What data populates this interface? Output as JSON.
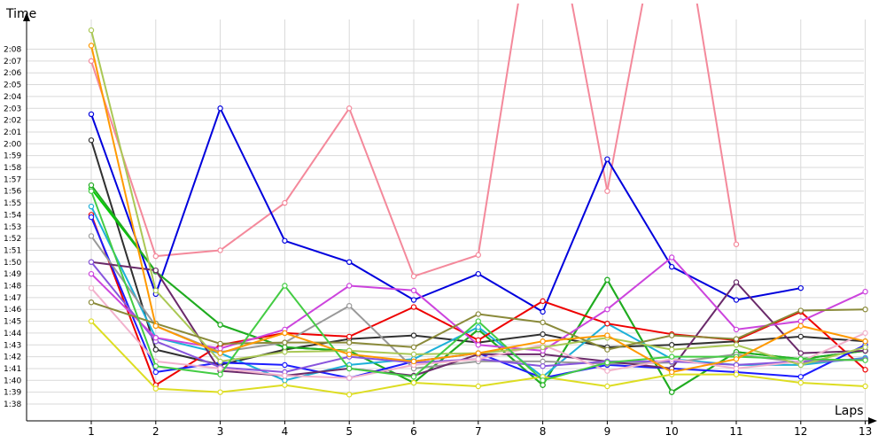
{
  "chart_data": {
    "type": "line",
    "xlabel": "Laps",
    "ylabel": "Time",
    "x": [
      1,
      2,
      3,
      4,
      5,
      6,
      7,
      8,
      9,
      10,
      11,
      12,
      13
    ],
    "y_ticks": [
      "1:38",
      "1:39",
      "1:40",
      "1:41",
      "1:42",
      "1:43",
      "1:44",
      "1:45",
      "1:46",
      "1:47",
      "1:48",
      "1:49",
      "1:50",
      "1:51",
      "1:52",
      "1:53",
      "1:54",
      "1:55",
      "1:56",
      "1:57",
      "1:58",
      "1:59",
      "2:00",
      "2:01",
      "2:02",
      "2:03",
      "2:04",
      "2:05",
      "2:06",
      "2:07",
      "2:08"
    ],
    "ylim_seconds": [
      97,
      131
    ],
    "grid": true,
    "series": [
      {
        "color": "#f4899b",
        "values": [
          127.0,
          110.5,
          111.0,
          115.0,
          123.0,
          108.8,
          110.6,
          145,
          116,
          145,
          111.5,
          null,
          null
        ]
      },
      {
        "color": "#0000dd",
        "values": [
          122.5,
          107.3,
          123.0,
          111.8,
          110.0,
          106.8,
          109.0,
          105.8,
          118.7,
          109.6,
          106.8,
          107.8,
          null
        ]
      },
      {
        "color": "#303030",
        "values": [
          120.3,
          102.6,
          101.3,
          102.6,
          103.5,
          103.8,
          103.2,
          103.9,
          102.8,
          103.0,
          103.3,
          103.7,
          103.3
        ]
      },
      {
        "color": "#00cc00",
        "values": [
          116.2,
          109.2,
          104.7,
          102.8,
          102.5,
          99.8,
          104.3,
          99.6,
          108.5,
          99.0,
          102.4,
          101.8,
          102.5
        ]
      },
      {
        "color": "#22aa22",
        "values": [
          116.5,
          109.2,
          104.7,
          102.8,
          102.5,
          99.8,
          104.3,
          99.6,
          108.5,
          99.0,
          102.4,
          101.8,
          102.5
        ]
      },
      {
        "color": "#1db0d8",
        "values": [
          114.7,
          103.6,
          102.3,
          100.0,
          101.3,
          101.8,
          104.5,
          100.3,
          104.8,
          101.8,
          101.3,
          101.3,
          101.9
        ]
      },
      {
        "color": "#ee0000",
        "values": [
          114.0,
          99.6,
          103.0,
          104.0,
          103.7,
          106.2,
          103.4,
          106.7,
          104.8,
          103.9,
          103.4,
          105.8,
          100.9
        ]
      },
      {
        "color": "#1c1cff",
        "values": [
          113.8,
          100.7,
          101.5,
          101.3,
          100.2,
          101.6,
          102.3,
          100.2,
          101.3,
          101.0,
          100.7,
          100.3,
          103.0
        ]
      },
      {
        "color": "#999999",
        "values": [
          112.2,
          104.6,
          102.4,
          103.2,
          106.3,
          101.0,
          101.6,
          101.6,
          101.4,
          101.5,
          102.2,
          101.5,
          101.8
        ]
      },
      {
        "color": "#6a2a6a",
        "values": [
          110.0,
          109.3,
          100.8,
          100.4,
          101.0,
          100.4,
          102.2,
          102.2,
          101.6,
          101.0,
          108.3,
          102.3,
          102.5
        ]
      },
      {
        "color": "#8855dd",
        "values": [
          110.0,
          103.3,
          101.1,
          100.7,
          102.0,
          101.5,
          101.8,
          101.2,
          101.6,
          101.6,
          101.3,
          101.6,
          101.8
        ]
      },
      {
        "color": "#cc44dd",
        "values": [
          109.0,
          103.6,
          102.7,
          104.3,
          108.0,
          107.6,
          103.0,
          102.5,
          106.0,
          110.4,
          104.3,
          105.0,
          107.5
        ]
      },
      {
        "color": "#f2b2cc",
        "values": [
          107.8,
          101.6,
          101.0,
          100.4,
          100.2,
          101.3,
          101.8,
          103.0,
          100.8,
          101.8,
          101.0,
          101.6,
          104.0
        ]
      },
      {
        "color": "#aac855",
        "values": [
          129.6,
          107.6,
          101.6,
          102.4,
          102.5,
          102.2,
          102.3,
          102.8,
          103.6,
          102.6,
          103.0,
          101.3,
          102.8
        ]
      },
      {
        "color": "#8a8a3a",
        "values": [
          106.6,
          104.8,
          103.1,
          103.2,
          103.2,
          102.8,
          105.6,
          104.9,
          102.6,
          103.8,
          103.5,
          105.9,
          106.0
        ]
      },
      {
        "color": "#dddd22",
        "values": [
          105.0,
          99.3,
          99.0,
          99.6,
          98.8,
          99.8,
          99.5,
          100.3,
          99.5,
          100.5,
          100.5,
          99.8,
          99.5
        ]
      },
      {
        "color": "#44cc44",
        "values": [
          116.0,
          101.2,
          100.5,
          108.0,
          101.0,
          100.3,
          105.0,
          100.0,
          101.5,
          102.0,
          102.0,
          101.8,
          101.7
        ]
      },
      {
        "color": "#ff9900",
        "values": [
          128.3,
          104.6,
          102.3,
          104.0,
          102.2,
          101.6,
          102.3,
          103.3,
          103.8,
          100.7,
          101.8,
          104.6,
          103.3
        ]
      }
    ]
  }
}
